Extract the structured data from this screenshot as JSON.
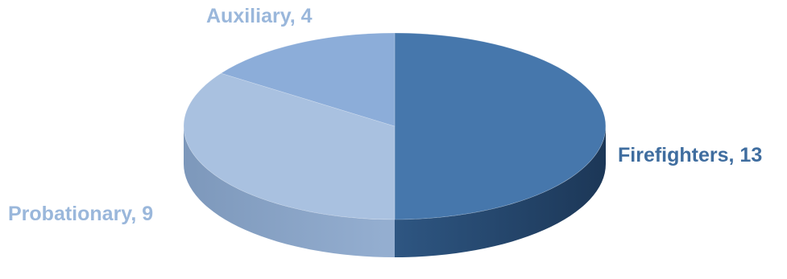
{
  "chart_data": {
    "type": "pie",
    "style": "3d",
    "title": "",
    "slices": [
      {
        "label": "Firefighters",
        "value": 13,
        "color": "#4677ac",
        "label_color": "#3f6d9f",
        "data_label": "Firefighters, 13"
      },
      {
        "label": "Probationary",
        "value": 9,
        "color": "#a9c1e0",
        "label_color": "#9ab7db",
        "data_label": "Probationary, 9"
      },
      {
        "label": "Auxiliary",
        "value": 4,
        "color": "#8cadd9",
        "label_color": "#9ab7db",
        "data_label": "Auxiliary, 4"
      }
    ]
  }
}
